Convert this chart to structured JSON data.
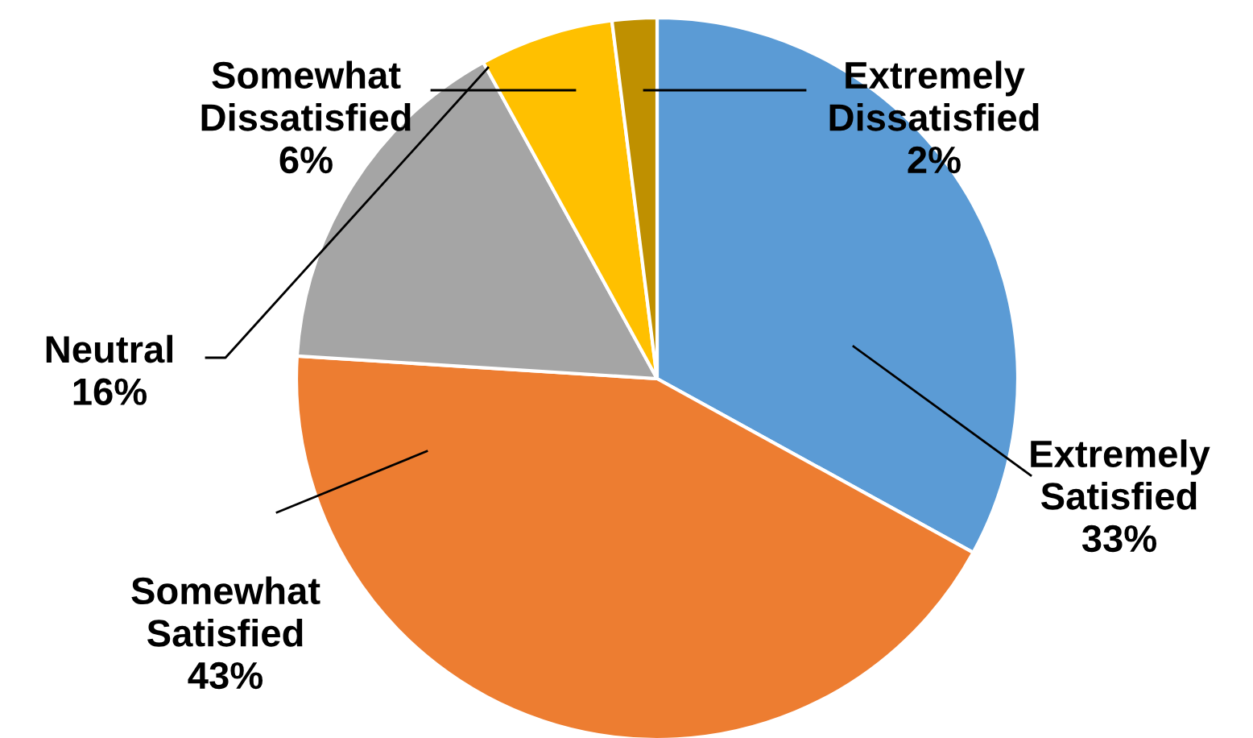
{
  "chart_data": {
    "type": "pie",
    "categories": [
      "Extremely Satisfied",
      "Somewhat Satisfied",
      "Neutral",
      "Somewhat Dissatisfied",
      "Extremely Dissatisfied"
    ],
    "values": [
      33,
      43,
      16,
      6,
      2
    ],
    "colors": [
      "#5b9bd5",
      "#ed7d31",
      "#a5a5a5",
      "#ffc000",
      "#bf9000"
    ],
    "value_labels": [
      "33%",
      "43%",
      "16%",
      "6%",
      "2%"
    ],
    "legend": false
  }
}
